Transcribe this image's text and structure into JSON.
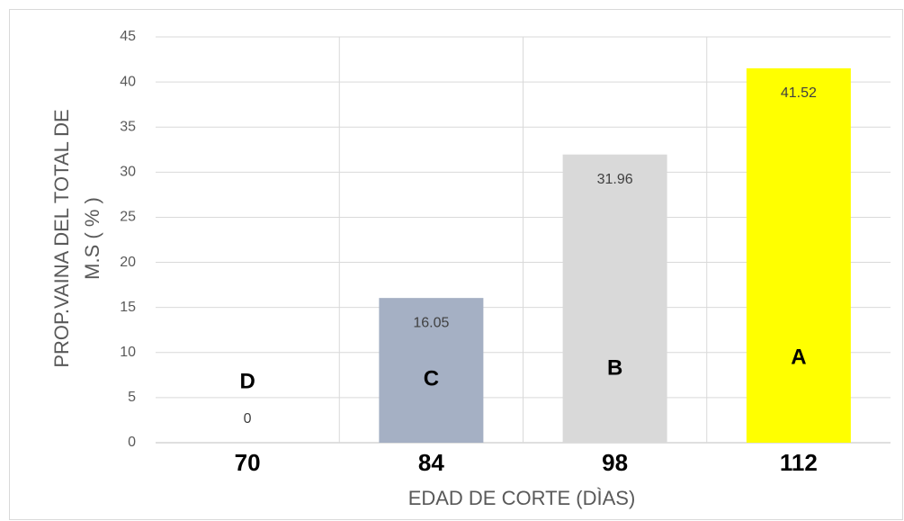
{
  "chart_data": {
    "type": "bar",
    "categories": [
      "70",
      "84",
      "98",
      "112"
    ],
    "values": [
      0,
      16.05,
      31.96,
      41.52
    ],
    "colors": [
      "#a5b0c4",
      "#a5b0c4",
      "#d9d9d9",
      "#ffff00"
    ],
    "annotations": [
      "D",
      "C",
      "B",
      "A"
    ],
    "x_label": "EDAD DE CORTE  (DÌAS)",
    "y_label": [
      "PROP.VAINA DEL TOTAL DE",
      "M.S  ( % )"
    ],
    "ylim": [
      0,
      45
    ],
    "yticks": [
      0,
      5,
      10,
      15,
      20,
      25,
      30,
      35,
      40,
      45
    ],
    "grid": true
  }
}
